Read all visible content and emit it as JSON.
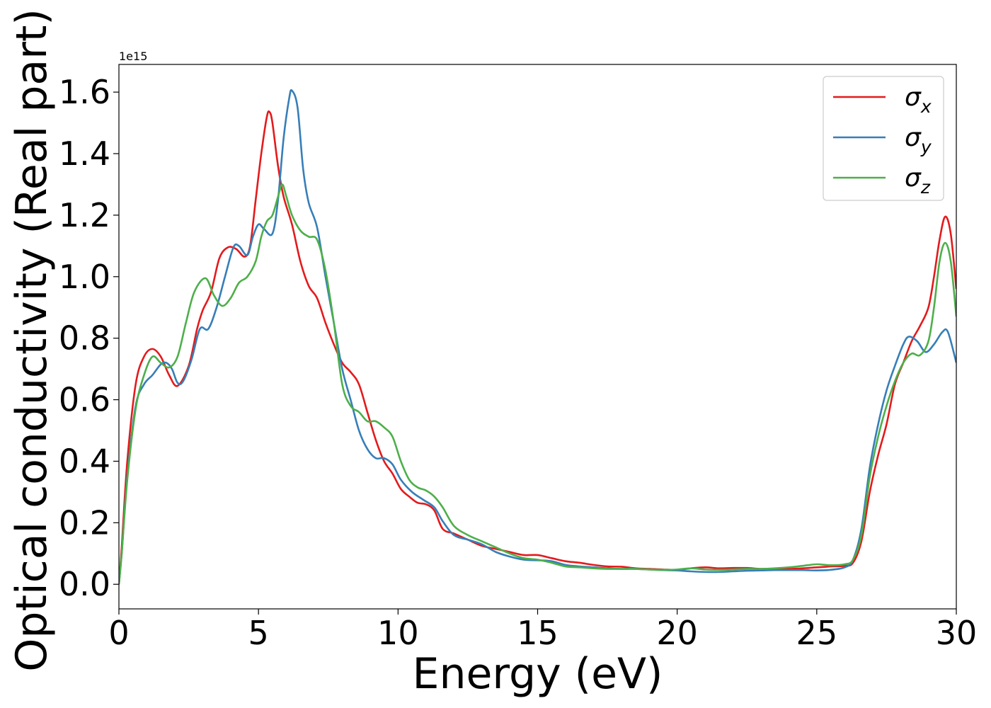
{
  "chart_data": {
    "type": "line",
    "title": "",
    "xlabel": "Energy (eV)",
    "ylabel": "Optical conductivity (Real part)",
    "y_offset_text": "1e15",
    "xlim": [
      0,
      30
    ],
    "ylim": [
      -0.08,
      1.69
    ],
    "x_ticks": [
      0,
      5,
      10,
      15,
      20,
      25,
      30
    ],
    "x_tick_labels": [
      "0",
      "5",
      "10",
      "15",
      "20",
      "25",
      "30"
    ],
    "y_ticks": [
      0.0,
      0.2,
      0.4,
      0.6,
      0.8,
      1.0,
      1.2,
      1.4,
      1.6
    ],
    "y_tick_labels": [
      "0.0",
      "0.2",
      "0.4",
      "0.6",
      "0.8",
      "1.0",
      "1.2",
      "1.4",
      "1.6"
    ],
    "grid": false,
    "legend_position": "top-right",
    "series": [
      {
        "name": "σx",
        "legend_main": "σ",
        "legend_sub": "x",
        "color": "#e41a1c",
        "points": [
          [
            0,
            0.0
          ],
          [
            0.1,
            0.12
          ],
          [
            0.3,
            0.4
          ],
          [
            0.6,
            0.65
          ],
          [
            0.9,
            0.74
          ],
          [
            1.2,
            0.765
          ],
          [
            1.5,
            0.74
          ],
          [
            1.8,
            0.68
          ],
          [
            2.1,
            0.645
          ],
          [
            2.5,
            0.71
          ],
          [
            2.8,
            0.83
          ],
          [
            3.0,
            0.89
          ],
          [
            3.3,
            0.95
          ],
          [
            3.6,
            1.06
          ],
          [
            3.9,
            1.095
          ],
          [
            4.2,
            1.09
          ],
          [
            4.5,
            1.065
          ],
          [
            4.7,
            1.1
          ],
          [
            4.9,
            1.25
          ],
          [
            5.1,
            1.4
          ],
          [
            5.3,
            1.52
          ],
          [
            5.4,
            1.535
          ],
          [
            5.5,
            1.5
          ],
          [
            5.7,
            1.36
          ],
          [
            5.9,
            1.26
          ],
          [
            6.2,
            1.17
          ],
          [
            6.5,
            1.05
          ],
          [
            6.8,
            0.97
          ],
          [
            7.1,
            0.93
          ],
          [
            7.4,
            0.85
          ],
          [
            7.7,
            0.78
          ],
          [
            8.0,
            0.72
          ],
          [
            8.3,
            0.69
          ],
          [
            8.6,
            0.65
          ],
          [
            8.9,
            0.56
          ],
          [
            9.2,
            0.47
          ],
          [
            9.5,
            0.4
          ],
          [
            9.8,
            0.36
          ],
          [
            10.1,
            0.31
          ],
          [
            10.4,
            0.285
          ],
          [
            10.7,
            0.265
          ],
          [
            11.0,
            0.26
          ],
          [
            11.3,
            0.24
          ],
          [
            11.6,
            0.18
          ],
          [
            12.0,
            0.165
          ],
          [
            12.5,
            0.145
          ],
          [
            13.0,
            0.125
          ],
          [
            13.5,
            0.115
          ],
          [
            14.0,
            0.105
          ],
          [
            14.5,
            0.095
          ],
          [
            15.0,
            0.095
          ],
          [
            15.5,
            0.085
          ],
          [
            16.0,
            0.075
          ],
          [
            16.5,
            0.07
          ],
          [
            17.0,
            0.063
          ],
          [
            17.5,
            0.058
          ],
          [
            18.0,
            0.057
          ],
          [
            18.5,
            0.052
          ],
          [
            19.0,
            0.05
          ],
          [
            19.5,
            0.048
          ],
          [
            20.0,
            0.047
          ],
          [
            20.5,
            0.052
          ],
          [
            21.0,
            0.055
          ],
          [
            21.5,
            0.052
          ],
          [
            22.0,
            0.053
          ],
          [
            22.5,
            0.053
          ],
          [
            23.0,
            0.05
          ],
          [
            23.5,
            0.05
          ],
          [
            24.0,
            0.05
          ],
          [
            24.5,
            0.052
          ],
          [
            25.0,
            0.055
          ],
          [
            25.5,
            0.058
          ],
          [
            26.0,
            0.06
          ],
          [
            26.3,
            0.07
          ],
          [
            26.6,
            0.14
          ],
          [
            26.9,
            0.3
          ],
          [
            27.2,
            0.42
          ],
          [
            27.5,
            0.52
          ],
          [
            27.8,
            0.65
          ],
          [
            28.1,
            0.72
          ],
          [
            28.4,
            0.79
          ],
          [
            28.7,
            0.84
          ],
          [
            29.0,
            0.9
          ],
          [
            29.2,
            1.0
          ],
          [
            29.4,
            1.12
          ],
          [
            29.6,
            1.195
          ],
          [
            29.8,
            1.14
          ],
          [
            30.0,
            0.96
          ]
        ]
      },
      {
        "name": "σy",
        "legend_main": "σ",
        "legend_sub": "y",
        "color": "#377eb8",
        "points": [
          [
            0,
            0.0
          ],
          [
            0.1,
            0.1
          ],
          [
            0.3,
            0.35
          ],
          [
            0.6,
            0.58
          ],
          [
            0.9,
            0.65
          ],
          [
            1.2,
            0.68
          ],
          [
            1.5,
            0.715
          ],
          [
            1.7,
            0.72
          ],
          [
            1.9,
            0.7
          ],
          [
            2.1,
            0.655
          ],
          [
            2.3,
            0.66
          ],
          [
            2.6,
            0.73
          ],
          [
            2.9,
            0.83
          ],
          [
            3.2,
            0.83
          ],
          [
            3.5,
            0.9
          ],
          [
            3.8,
            1.0
          ],
          [
            4.1,
            1.095
          ],
          [
            4.3,
            1.1
          ],
          [
            4.6,
            1.07
          ],
          [
            4.8,
            1.13
          ],
          [
            5.0,
            1.17
          ],
          [
            5.2,
            1.155
          ],
          [
            5.5,
            1.14
          ],
          [
            5.7,
            1.25
          ],
          [
            5.9,
            1.45
          ],
          [
            6.1,
            1.58
          ],
          [
            6.2,
            1.605
          ],
          [
            6.4,
            1.55
          ],
          [
            6.6,
            1.35
          ],
          [
            6.8,
            1.24
          ],
          [
            7.1,
            1.16
          ],
          [
            7.4,
            1.0
          ],
          [
            7.7,
            0.85
          ],
          [
            8.0,
            0.7
          ],
          [
            8.3,
            0.6
          ],
          [
            8.6,
            0.5
          ],
          [
            8.9,
            0.44
          ],
          [
            9.2,
            0.41
          ],
          [
            9.5,
            0.41
          ],
          [
            9.8,
            0.39
          ],
          [
            10.1,
            0.34
          ],
          [
            10.5,
            0.3
          ],
          [
            10.9,
            0.275
          ],
          [
            11.3,
            0.25
          ],
          [
            11.6,
            0.205
          ],
          [
            12.0,
            0.16
          ],
          [
            12.5,
            0.145
          ],
          [
            13.0,
            0.13
          ],
          [
            13.5,
            0.105
          ],
          [
            14.0,
            0.09
          ],
          [
            14.5,
            0.08
          ],
          [
            15.0,
            0.078
          ],
          [
            15.5,
            0.075
          ],
          [
            16.0,
            0.063
          ],
          [
            16.5,
            0.058
          ],
          [
            17.0,
            0.055
          ],
          [
            17.5,
            0.052
          ],
          [
            18.0,
            0.05
          ],
          [
            18.5,
            0.05
          ],
          [
            19.0,
            0.048
          ],
          [
            19.5,
            0.046
          ],
          [
            20.0,
            0.045
          ],
          [
            20.5,
            0.042
          ],
          [
            21.0,
            0.04
          ],
          [
            21.5,
            0.04
          ],
          [
            22.0,
            0.042
          ],
          [
            22.5,
            0.044
          ],
          [
            23.0,
            0.045
          ],
          [
            23.5,
            0.046
          ],
          [
            24.0,
            0.046
          ],
          [
            24.5,
            0.046
          ],
          [
            25.0,
            0.045
          ],
          [
            25.5,
            0.047
          ],
          [
            26.0,
            0.055
          ],
          [
            26.3,
            0.08
          ],
          [
            26.6,
            0.18
          ],
          [
            26.9,
            0.38
          ],
          [
            27.2,
            0.52
          ],
          [
            27.5,
            0.63
          ],
          [
            27.8,
            0.71
          ],
          [
            28.1,
            0.78
          ],
          [
            28.3,
            0.805
          ],
          [
            28.6,
            0.79
          ],
          [
            28.9,
            0.755
          ],
          [
            29.2,
            0.78
          ],
          [
            29.5,
            0.82
          ],
          [
            29.7,
            0.82
          ],
          [
            30.0,
            0.72
          ]
        ]
      },
      {
        "name": "σz",
        "legend_main": "σ",
        "legend_sub": "z",
        "color": "#4daf4a",
        "points": [
          [
            0,
            0.0
          ],
          [
            0.1,
            0.1
          ],
          [
            0.3,
            0.34
          ],
          [
            0.6,
            0.57
          ],
          [
            0.9,
            0.68
          ],
          [
            1.2,
            0.74
          ],
          [
            1.5,
            0.72
          ],
          [
            1.8,
            0.705
          ],
          [
            2.1,
            0.74
          ],
          [
            2.4,
            0.85
          ],
          [
            2.7,
            0.95
          ],
          [
            3.1,
            0.995
          ],
          [
            3.4,
            0.94
          ],
          [
            3.7,
            0.905
          ],
          [
            4.0,
            0.93
          ],
          [
            4.3,
            0.98
          ],
          [
            4.6,
            1.0
          ],
          [
            4.9,
            1.05
          ],
          [
            5.1,
            1.13
          ],
          [
            5.3,
            1.18
          ],
          [
            5.5,
            1.2
          ],
          [
            5.7,
            1.26
          ],
          [
            5.85,
            1.3
          ],
          [
            6.0,
            1.26
          ],
          [
            6.2,
            1.2
          ],
          [
            6.5,
            1.15
          ],
          [
            6.8,
            1.13
          ],
          [
            7.1,
            1.12
          ],
          [
            7.4,
            1.02
          ],
          [
            7.7,
            0.85
          ],
          [
            8.0,
            0.65
          ],
          [
            8.3,
            0.58
          ],
          [
            8.6,
            0.56
          ],
          [
            8.9,
            0.53
          ],
          [
            9.2,
            0.53
          ],
          [
            9.5,
            0.51
          ],
          [
            9.8,
            0.48
          ],
          [
            10.1,
            0.4
          ],
          [
            10.4,
            0.34
          ],
          [
            10.7,
            0.315
          ],
          [
            11.0,
            0.305
          ],
          [
            11.3,
            0.285
          ],
          [
            11.6,
            0.25
          ],
          [
            12.0,
            0.19
          ],
          [
            12.5,
            0.16
          ],
          [
            13.0,
            0.14
          ],
          [
            13.5,
            0.12
          ],
          [
            14.0,
            0.1
          ],
          [
            14.5,
            0.085
          ],
          [
            15.0,
            0.08
          ],
          [
            15.5,
            0.07
          ],
          [
            16.0,
            0.058
          ],
          [
            16.5,
            0.055
          ],
          [
            17.0,
            0.052
          ],
          [
            17.5,
            0.05
          ],
          [
            18.0,
            0.05
          ],
          [
            18.5,
            0.05
          ],
          [
            19.0,
            0.048
          ],
          [
            19.5,
            0.047
          ],
          [
            20.0,
            0.048
          ],
          [
            20.5,
            0.052
          ],
          [
            21.0,
            0.048
          ],
          [
            21.5,
            0.047
          ],
          [
            22.0,
            0.048
          ],
          [
            22.5,
            0.05
          ],
          [
            23.0,
            0.05
          ],
          [
            23.5,
            0.052
          ],
          [
            24.0,
            0.055
          ],
          [
            24.5,
            0.06
          ],
          [
            25.0,
            0.065
          ],
          [
            25.5,
            0.062
          ],
          [
            26.0,
            0.065
          ],
          [
            26.3,
            0.08
          ],
          [
            26.6,
            0.16
          ],
          [
            26.9,
            0.35
          ],
          [
            27.2,
            0.48
          ],
          [
            27.5,
            0.58
          ],
          [
            27.8,
            0.66
          ],
          [
            28.1,
            0.72
          ],
          [
            28.4,
            0.75
          ],
          [
            28.7,
            0.745
          ],
          [
            29.0,
            0.79
          ],
          [
            29.2,
            0.9
          ],
          [
            29.4,
            1.05
          ],
          [
            29.6,
            1.11
          ],
          [
            29.8,
            1.05
          ],
          [
            30.0,
            0.87
          ]
        ]
      }
    ]
  }
}
